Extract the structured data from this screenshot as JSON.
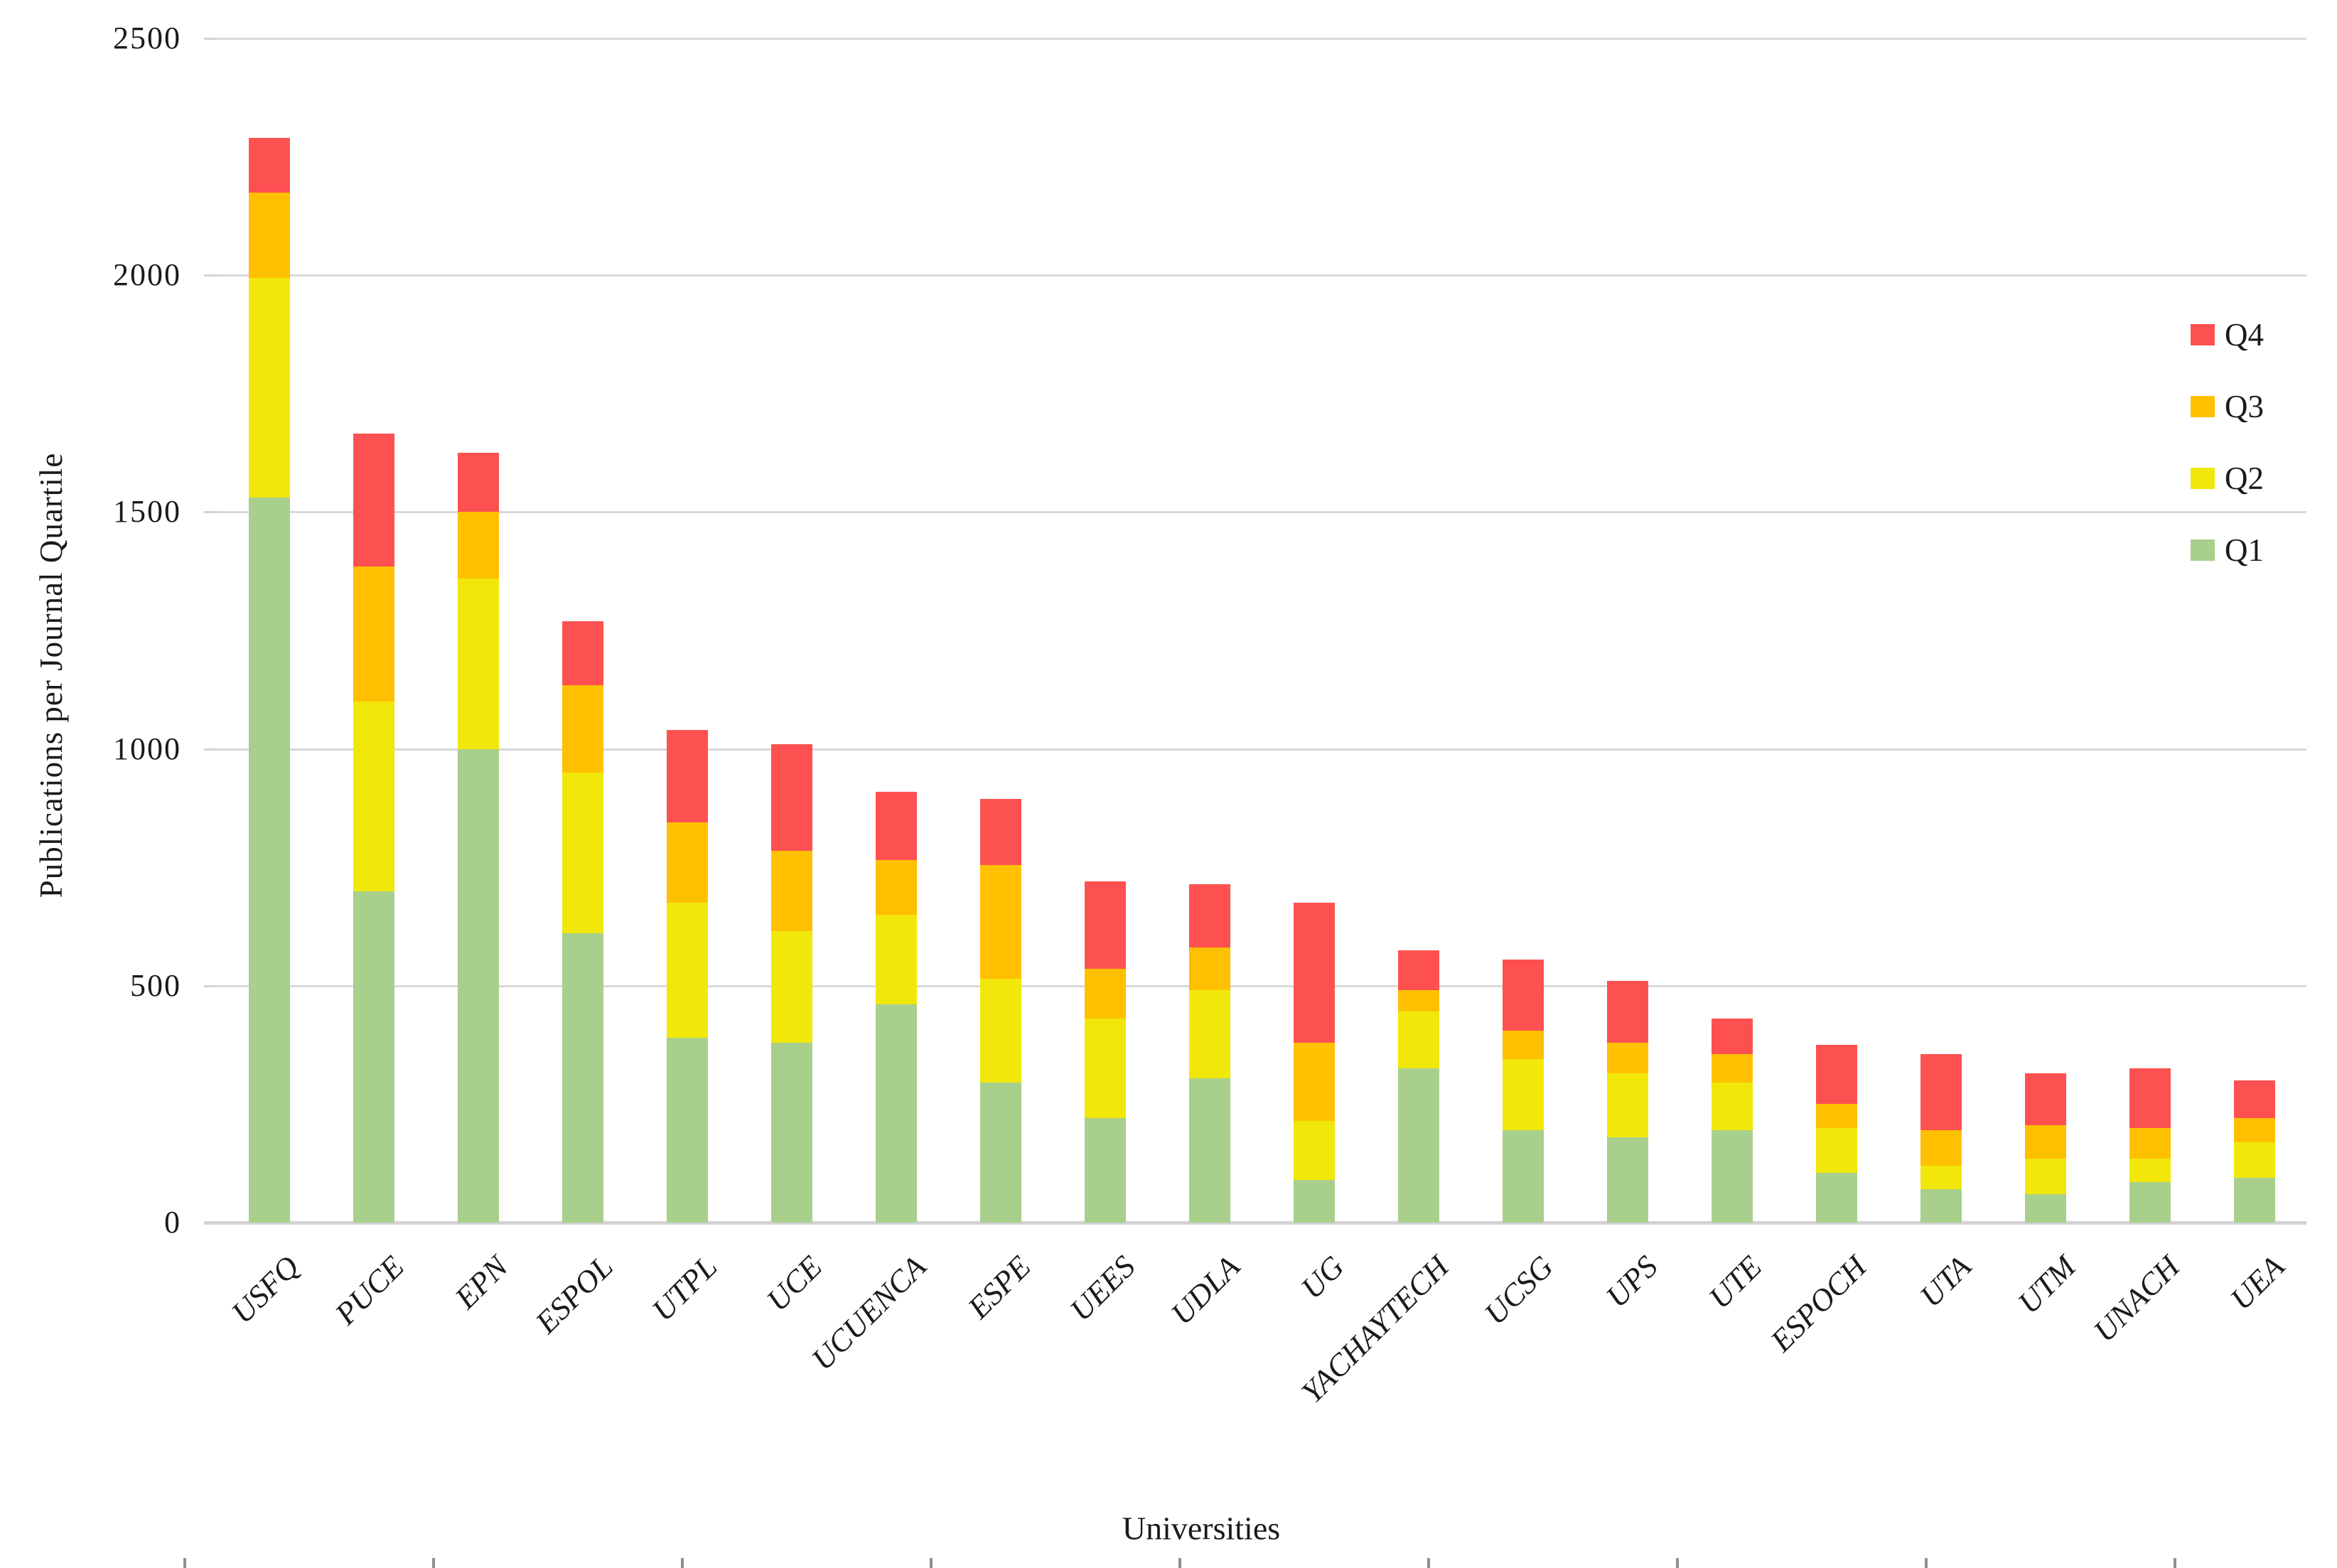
{
  "chart_data": {
    "type": "bar",
    "stacked": true,
    "xlabel": "Universities",
    "ylabel": "Publications per Journal Quartile",
    "ylim": [
      0,
      2500
    ],
    "yticks": [
      0,
      500,
      1000,
      1500,
      2000,
      2500
    ],
    "grid": true,
    "legend_position": "right",
    "legend_order_top_to_bottom": [
      "Q4",
      "Q3",
      "Q2",
      "Q1"
    ],
    "categories": [
      "USFQ",
      "PUCE",
      "EPN",
      "ESPOL",
      "UTPL",
      "UCE",
      "UCUENCA",
      "ESPE",
      "UEES",
      "UDLA",
      "UG",
      "YACHAYTECH",
      "UCSG",
      "UPS",
      "UTE",
      "ESPOCH",
      "UTA",
      "UTM",
      "UNACH",
      "UEA"
    ],
    "series": [
      {
        "name": "Q1",
        "color": "#a8cf8c",
        "values": [
          1530,
          700,
          1000,
          610,
          390,
          380,
          460,
          295,
          220,
          305,
          90,
          325,
          195,
          180,
          195,
          105,
          70,
          60,
          85,
          95
        ]
      },
      {
        "name": "Q2",
        "color": "#f1e80a",
        "values": [
          465,
          400,
          360,
          340,
          285,
          235,
          190,
          220,
          210,
          185,
          125,
          120,
          150,
          135,
          100,
          95,
          50,
          75,
          50,
          75
        ]
      },
      {
        "name": "Q3",
        "color": "#ffc000",
        "values": [
          180,
          285,
          140,
          185,
          170,
          170,
          115,
          240,
          105,
          90,
          165,
          45,
          60,
          65,
          60,
          50,
          75,
          70,
          65,
          50
        ]
      },
      {
        "name": "Q4",
        "color": "#fd5151",
        "values": [
          115,
          280,
          125,
          135,
          195,
          225,
          145,
          140,
          185,
          135,
          295,
          85,
          150,
          130,
          75,
          125,
          160,
          110,
          125,
          80
        ]
      }
    ],
    "totals": [
      2290,
      1665,
      1625,
      1270,
      1040,
      1010,
      910,
      895,
      720,
      715,
      675,
      575,
      555,
      510,
      430,
      375,
      355,
      315,
      325,
      300
    ]
  },
  "colors": {
    "gridline": "#d9d9d9",
    "axis_line": "#d3d3d3",
    "text": "#1a1a1a",
    "background": "#ffffff"
  }
}
